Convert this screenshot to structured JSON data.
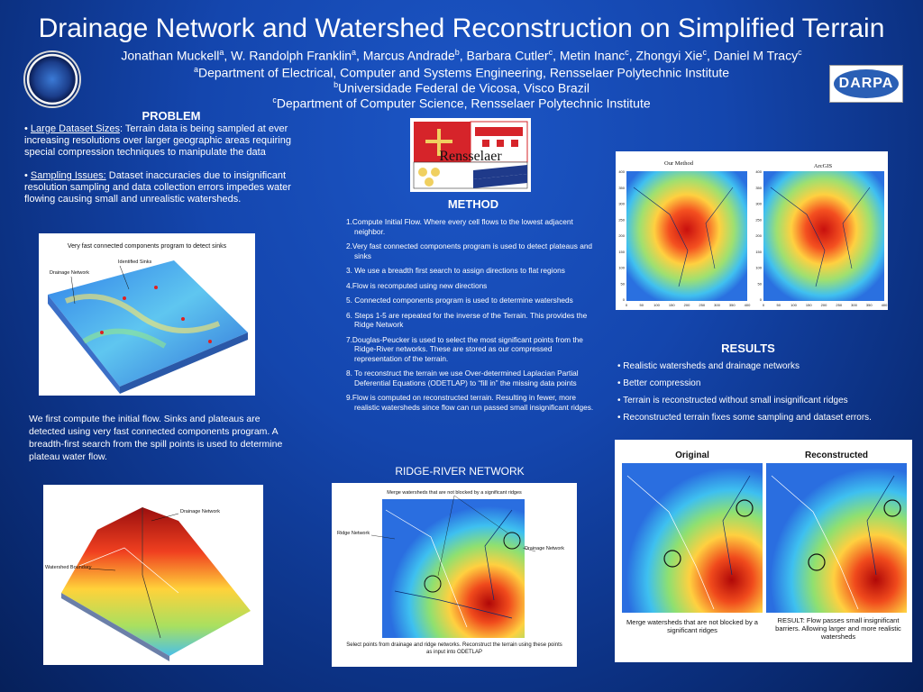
{
  "header": {
    "title": "Drainage Network and Watershed Reconstruction on Simplified Terrain",
    "authors": [
      {
        "name": "Jonathan Muckell",
        "sup": "a"
      },
      {
        "name": "W. Randolph Franklin",
        "sup": "a"
      },
      {
        "name": "Marcus Andrade",
        "sup": "b"
      },
      {
        "name": "Barbara Cutler",
        "sup": "c"
      },
      {
        "name": "Metin Inanc",
        "sup": "c"
      },
      {
        "name": "Zhongyi Xie",
        "sup": "c"
      },
      {
        "name": "Daniel M Tracy",
        "sup": "c"
      }
    ],
    "affiliations": [
      {
        "sup": "a",
        "text": "Department of Electrical, Computer and Systems Engineering, Rensselaer Polytechnic Institute"
      },
      {
        "sup": "b",
        "text": "Universidade Federal de Vicosa, Visco Brazil"
      },
      {
        "sup": "c",
        "text": "Department of Computer Science, Rensselaer Polytechnic Institute"
      }
    ],
    "logo_left": "nga-seal-icon",
    "logo_right_text": "DARPA"
  },
  "problem": {
    "heading": "PROBLEM",
    "bullets": [
      {
        "term": "Large Dataset Sizes",
        "sep": ":",
        "text": " Terrain data is being sampled at ever increasing resolutions over larger geographic areas requiring special compression techniques to manipulate the data"
      },
      {
        "term": "Sampling Issues:",
        "sep": "",
        "text": " Dataset inaccuracies due to insignificant resolution sampling and data collection errors impedes water flowing causing small and unrealistic watersheds."
      }
    ]
  },
  "figure_sinks": {
    "title": "Very fast connected components program to detect sinks",
    "label_sinks": "Identified Sinks",
    "label_network": "Drainage Network"
  },
  "flow_paragraph": "We first compute the initial flow. Sinks and plateaus are detected using very fast connected components program.  A breadth-first search from the spill points is used to determine plateau water flow.",
  "figure_watershed": {
    "label_network": "Drainage Network",
    "label_boundary": "Watershed Boundary"
  },
  "rpi_logo": {
    "text": "Rensselaer"
  },
  "method": {
    "heading": "METHOD",
    "items": [
      "1.Compute Initial Flow.  Where every cell flows to the lowest adjacent neighbor.",
      "2.Very fast connected components program is used to detect plateaus and sinks",
      "3. We use a breadth first search to assign directions to flat regions",
      "4.Flow is recomputed using new directions",
      "5. Connected components program is used to determine watersheds",
      "6. Steps 1-5 are repeated for the inverse of the Terrain. This provides the Ridge Network",
      "7.Douglas-Peucker is used to select the most significant points from the Ridge-River networks.  These are stored as our compressed representation of the terrain.",
      "8. To reconstruct the terrain  we use Over-determined Laplacian Partial Deferential Equations (ODETLAP) to “fill in” the missing data points",
      "9.Flow is computed on reconstructed terrain.  Resulting in fewer, more realistic watersheds since flow can run passed small insignificant ridges."
    ]
  },
  "figure_compare": {
    "left_title": "Our Method",
    "right_title": "ArcGIS",
    "y_ticks": [
      "400",
      "350",
      "300",
      "250",
      "200",
      "150",
      "100",
      "50",
      "0"
    ],
    "x_ticks": [
      "0",
      "50",
      "100",
      "150",
      "200",
      "250",
      "300",
      "350",
      "400"
    ]
  },
  "ridge_river": {
    "heading": "RIDGE-RIVER NETWORK",
    "label_merge": "Merge watersheds that are not blocked by a significant ridges",
    "label_ridge": "Ridge Network",
    "label_drainage": "Drainage Network",
    "caption": "Select points from drainage and ridge networks.  Reconstruct the terrain using these points as input into ODETLAP"
  },
  "results": {
    "heading": "RESULTS",
    "bullets": [
      "• Realistic watersheds and drainage networks",
      "• Better compression",
      "• Terrain is reconstructed without small insignificant ridges",
      "• Reconstructed terrain fixes some sampling and dataset errors."
    ]
  },
  "figure_reconstructed": {
    "left_title": "Original",
    "right_title": "Reconstructed",
    "left_caption": "Merge watersheds that are not blocked by a significant ridges",
    "right_caption": "RESULT: Flow passes small insignificant barriers.  Allowing larger and more realistic watersheds"
  }
}
